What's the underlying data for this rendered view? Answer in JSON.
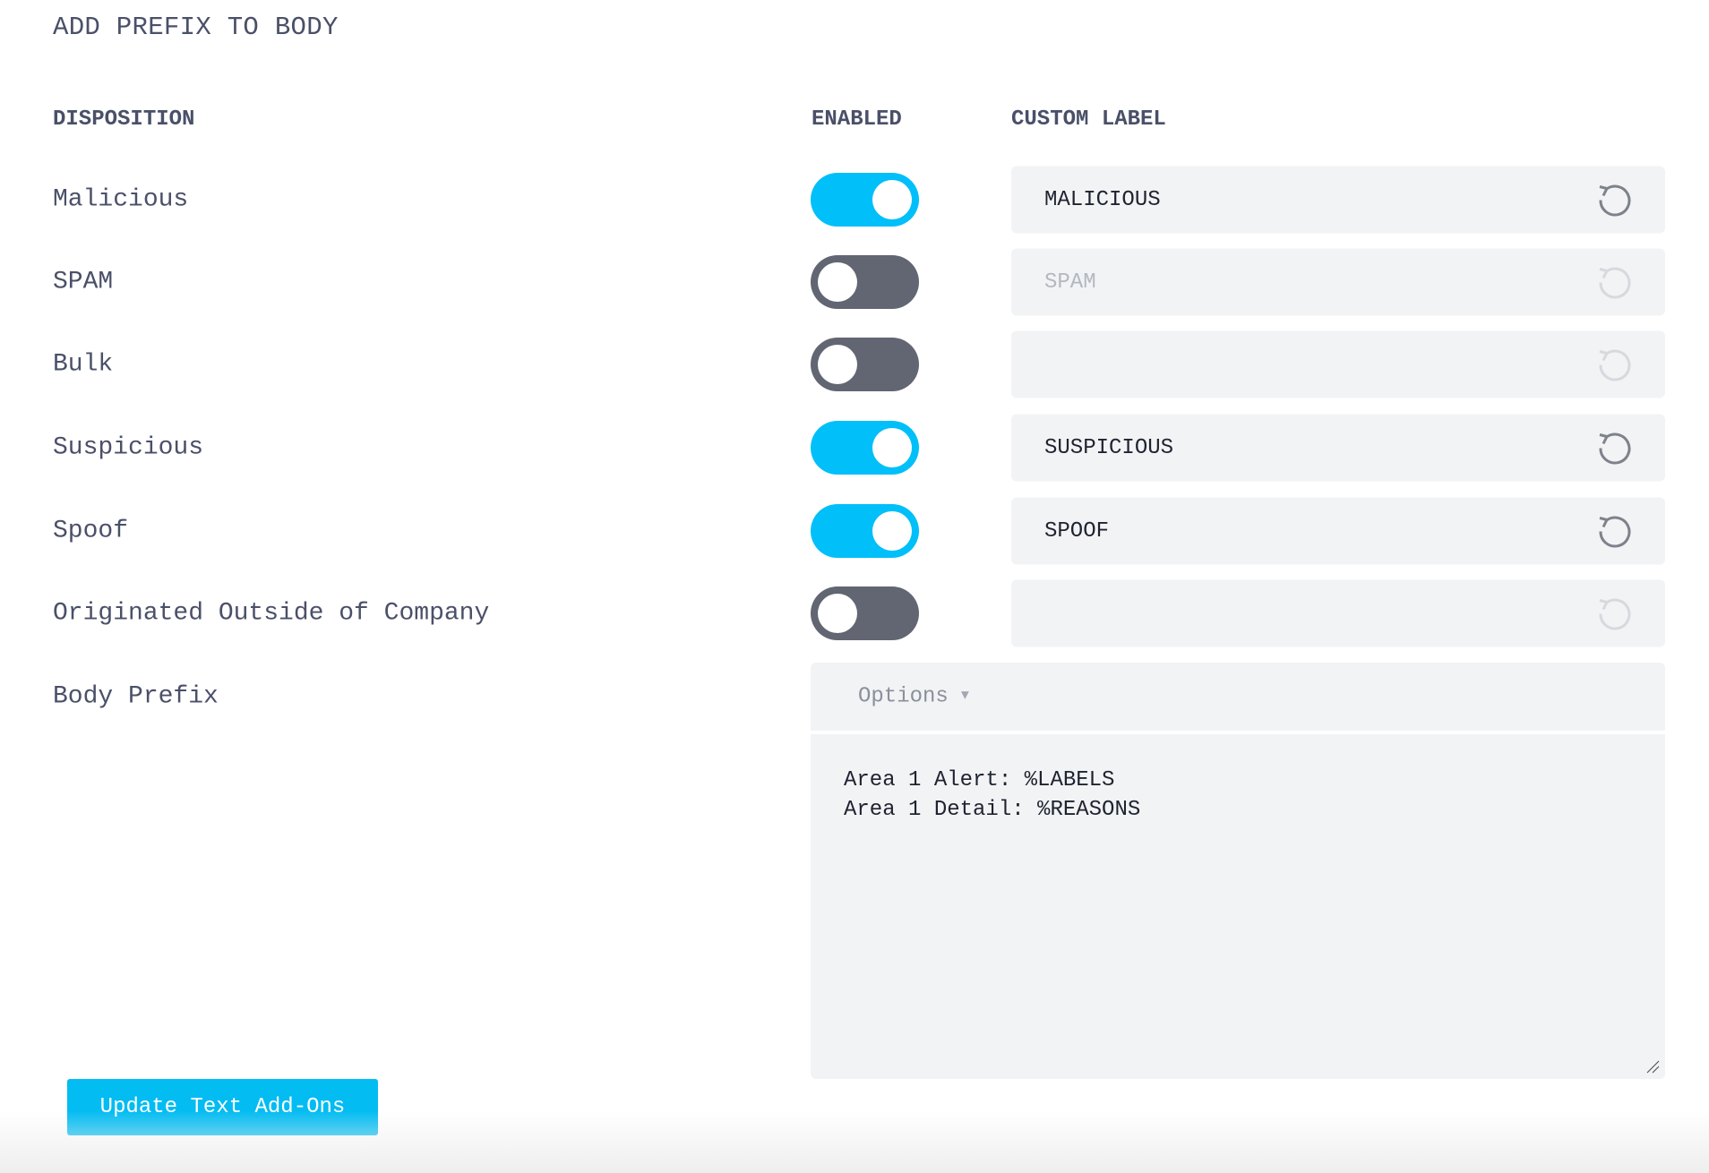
{
  "title": "ADD PREFIX TO BODY",
  "headers": {
    "disposition": "DISPOSITION",
    "enabled": "ENABLED",
    "custom_label": "CUSTOM LABEL"
  },
  "rows": [
    {
      "label": "Malicious",
      "enabled": true,
      "custom_label": "MALICIOUS"
    },
    {
      "label": "SPAM",
      "enabled": false,
      "custom_label": "SPAM"
    },
    {
      "label": "Bulk",
      "enabled": false,
      "custom_label": ""
    },
    {
      "label": "Suspicious",
      "enabled": true,
      "custom_label": "SUSPICIOUS"
    },
    {
      "label": "Spoof",
      "enabled": true,
      "custom_label": "SPOOF"
    },
    {
      "label": "Originated Outside of Company",
      "enabled": false,
      "custom_label": ""
    }
  ],
  "body_prefix": {
    "label": "Body Prefix",
    "options_label": "Options",
    "lines": [
      "Area 1 Alert: %LABELS",
      "Area 1 Detail: %REASONS"
    ]
  },
  "update_button": "Update Text Add-Ons",
  "colors": {
    "accent": "#00bff9",
    "toggle_off": "#626572",
    "text": "#4a5068",
    "field_bg": "#f2f3f5"
  }
}
